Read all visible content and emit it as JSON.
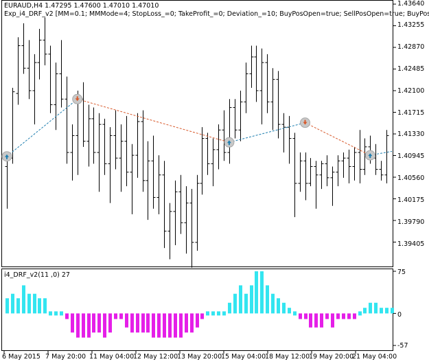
{
  "header": {
    "symbol_line": "EURAUD,H4  1.47295 1.47600 1.47010 1.47010",
    "ea_line": "Exp_i4_DRF_v2 [MM=0.1; MMMode=4; StopLoss_=0; TakeProfit_=0; Deviation_=10; BuyPosOpen=true; SellPosOpen=true; BuyPosC"
  },
  "indicator": {
    "title": "i4_DRF_v2(11 ,0) 27",
    "levels": [
      "75",
      "0",
      "-57"
    ]
  },
  "price_axis": [
    "1.43640",
    "1.43255",
    "1.42870",
    "1.42485",
    "1.42100",
    "1.41715",
    "1.41330",
    "1.40945",
    "1.40560",
    "1.40175",
    "1.39790",
    "1.39405"
  ],
  "date_axis": [
    "6 May 2015",
    "7 May 20:00",
    "11 May 04:00",
    "12 May 12:00",
    "13 May 20:00",
    "15 May 04:00",
    "18 May 12:00",
    "19 May 20:00",
    "21 May 04:00"
  ],
  "colors": {
    "positive_bar": "#33e5f0",
    "negative_bar": "#e51fe8",
    "buy_line": "#1f7fb0",
    "sell_line": "#d8592b",
    "candle": "#000000"
  },
  "chart_data": {
    "type": "candlestick",
    "price_ylim": [
      1.3902,
      1.4364
    ],
    "indicator_ylim": [
      -57,
      75
    ],
    "candles": [
      {
        "o": 1.4075,
        "h": 1.4095,
        "l": 1.4,
        "c": 1.4088
      },
      {
        "o": 1.409,
        "h": 1.4215,
        "l": 1.408,
        "c": 1.4208
      },
      {
        "o": 1.4205,
        "h": 1.4305,
        "l": 1.4185,
        "c": 1.429
      },
      {
        "o": 1.429,
        "h": 1.433,
        "l": 1.424,
        "c": 1.425
      },
      {
        "o": 1.425,
        "h": 1.43,
        "l": 1.4195,
        "c": 1.421
      },
      {
        "o": 1.421,
        "h": 1.4275,
        "l": 1.415,
        "c": 1.426
      },
      {
        "o": 1.426,
        "h": 1.432,
        "l": 1.423,
        "c": 1.43
      },
      {
        "o": 1.43,
        "h": 1.434,
        "l": 1.4255,
        "c": 1.4275
      },
      {
        "o": 1.4275,
        "h": 1.429,
        "l": 1.417,
        "c": 1.4185
      },
      {
        "o": 1.4185,
        "h": 1.426,
        "l": 1.414,
        "c": 1.424
      },
      {
        "o": 1.424,
        "h": 1.43,
        "l": 1.418,
        "c": 1.4195
      },
      {
        "o": 1.4195,
        "h": 1.4235,
        "l": 1.408,
        "c": 1.41
      },
      {
        "o": 1.41,
        "h": 1.415,
        "l": 1.405,
        "c": 1.413
      },
      {
        "o": 1.413,
        "h": 1.421,
        "l": 1.406,
        "c": 1.4195
      },
      {
        "o": 1.4195,
        "h": 1.4225,
        "l": 1.411,
        "c": 1.412
      },
      {
        "o": 1.412,
        "h": 1.4185,
        "l": 1.4075,
        "c": 1.416
      },
      {
        "o": 1.416,
        "h": 1.418,
        "l": 1.408,
        "c": 1.41
      },
      {
        "o": 1.41,
        "h": 1.417,
        "l": 1.403,
        "c": 1.415
      },
      {
        "o": 1.415,
        "h": 1.416,
        "l": 1.406,
        "c": 1.408
      },
      {
        "o": 1.408,
        "h": 1.4145,
        "l": 1.401,
        "c": 1.413
      },
      {
        "o": 1.413,
        "h": 1.4175,
        "l": 1.407,
        "c": 1.409
      },
      {
        "o": 1.409,
        "h": 1.415,
        "l": 1.403,
        "c": 1.412
      },
      {
        "o": 1.412,
        "h": 1.4165,
        "l": 1.404,
        "c": 1.4065
      },
      {
        "o": 1.4065,
        "h": 1.4115,
        "l": 1.399,
        "c": 1.4095
      },
      {
        "o": 1.4095,
        "h": 1.417,
        "l": 1.4055,
        "c": 1.4155
      },
      {
        "o": 1.4155,
        "h": 1.4175,
        "l": 1.403,
        "c": 1.405
      },
      {
        "o": 1.405,
        "h": 1.412,
        "l": 1.398,
        "c": 1.4085
      },
      {
        "o": 1.4085,
        "h": 1.413,
        "l": 1.4,
        "c": 1.402
      },
      {
        "o": 1.402,
        "h": 1.4095,
        "l": 1.399,
        "c": 1.406
      },
      {
        "o": 1.406,
        "h": 1.4085,
        "l": 1.393,
        "c": 1.396
      },
      {
        "o": 1.396,
        "h": 1.401,
        "l": 1.391,
        "c": 1.3995
      },
      {
        "o": 1.3995,
        "h": 1.405,
        "l": 1.3935,
        "c": 1.403
      },
      {
        "o": 1.403,
        "h": 1.406,
        "l": 1.3955,
        "c": 1.3975
      },
      {
        "o": 1.3975,
        "h": 1.404,
        "l": 1.392,
        "c": 1.401
      },
      {
        "o": 1.401,
        "h": 1.4035,
        "l": 1.3895,
        "c": 1.394
      },
      {
        "o": 1.394,
        "h": 1.406,
        "l": 1.3925,
        "c": 1.4045
      },
      {
        "o": 1.4045,
        "h": 1.4145,
        "l": 1.4025,
        "c": 1.4125
      },
      {
        "o": 1.4125,
        "h": 1.4135,
        "l": 1.406,
        "c": 1.408
      },
      {
        "o": 1.408,
        "h": 1.4125,
        "l": 1.404,
        "c": 1.4105
      },
      {
        "o": 1.4105,
        "h": 1.415,
        "l": 1.407,
        "c": 1.414
      },
      {
        "o": 1.414,
        "h": 1.4175,
        "l": 1.4085,
        "c": 1.41
      },
      {
        "o": 1.41,
        "h": 1.4195,
        "l": 1.408,
        "c": 1.418
      },
      {
        "o": 1.418,
        "h": 1.4195,
        "l": 1.4125,
        "c": 1.414
      },
      {
        "o": 1.414,
        "h": 1.421,
        "l": 1.412,
        "c": 1.419
      },
      {
        "o": 1.419,
        "h": 1.426,
        "l": 1.417,
        "c": 1.424
      },
      {
        "o": 1.424,
        "h": 1.429,
        "l": 1.4215,
        "c": 1.427
      },
      {
        "o": 1.427,
        "h": 1.429,
        "l": 1.419,
        "c": 1.421
      },
      {
        "o": 1.421,
        "h": 1.4285,
        "l": 1.415,
        "c": 1.426
      },
      {
        "o": 1.426,
        "h": 1.4275,
        "l": 1.417,
        "c": 1.419
      },
      {
        "o": 1.419,
        "h": 1.425,
        "l": 1.414,
        "c": 1.423
      },
      {
        "o": 1.423,
        "h": 1.4245,
        "l": 1.4125,
        "c": 1.415
      },
      {
        "o": 1.415,
        "h": 1.417,
        "l": 1.41,
        "c": 1.4145
      },
      {
        "o": 1.4145,
        "h": 1.4165,
        "l": 1.408,
        "c": 1.4125
      },
      {
        "o": 1.4125,
        "h": 1.4135,
        "l": 1.3985,
        "c": 1.4045
      },
      {
        "o": 1.4045,
        "h": 1.41,
        "l": 1.403,
        "c": 1.4085
      },
      {
        "o": 1.4085,
        "h": 1.41,
        "l": 1.4015,
        "c": 1.4045
      },
      {
        "o": 1.4045,
        "h": 1.409,
        "l": 1.404,
        "c": 1.4075
      },
      {
        "o": 1.4075,
        "h": 1.4085,
        "l": 1.4,
        "c": 1.406
      },
      {
        "o": 1.406,
        "h": 1.4085,
        "l": 1.4035,
        "c": 1.408
      },
      {
        "o": 1.408,
        "h": 1.4095,
        "l": 1.404,
        "c": 1.4055
      },
      {
        "o": 1.4055,
        "h": 1.4075,
        "l": 1.4005,
        "c": 1.4065
      },
      {
        "o": 1.4065,
        "h": 1.4095,
        "l": 1.404,
        "c": 1.4085
      },
      {
        "o": 1.4085,
        "h": 1.41,
        "l": 1.4055,
        "c": 1.409
      },
      {
        "o": 1.409,
        "h": 1.4105,
        "l": 1.4045,
        "c": 1.4075
      },
      {
        "o": 1.4075,
        "h": 1.411,
        "l": 1.405,
        "c": 1.41
      },
      {
        "o": 1.41,
        "h": 1.414,
        "l": 1.4045,
        "c": 1.407
      },
      {
        "o": 1.407,
        "h": 1.4125,
        "l": 1.406,
        "c": 1.411
      },
      {
        "o": 1.411,
        "h": 1.413,
        "l": 1.408,
        "c": 1.409
      },
      {
        "o": 1.409,
        "h": 1.4115,
        "l": 1.406,
        "c": 1.407
      },
      {
        "o": 1.407,
        "h": 1.4085,
        "l": 1.405,
        "c": 1.406
      },
      {
        "o": 1.406,
        "h": 1.414,
        "l": 1.4045,
        "c": 1.413
      }
    ],
    "histogram": [
      27,
      35,
      27,
      50,
      35,
      35,
      27,
      27,
      0,
      0,
      0,
      -10,
      -34,
      -43,
      -43,
      -43,
      -34,
      -34,
      -43,
      -34,
      -10,
      -10,
      -25,
      -34,
      -34,
      -34,
      -34,
      -43,
      -43,
      -43,
      -43,
      -43,
      -43,
      -34,
      -34,
      -25,
      -10,
      0,
      0,
      0,
      0,
      19,
      35,
      50,
      35,
      50,
      75,
      75,
      50,
      35,
      27,
      19,
      10,
      0,
      -10,
      -10,
      -25,
      -25,
      -25,
      -10,
      -25,
      -10,
      -10,
      -10,
      -10,
      0,
      10,
      19,
      19,
      10,
      10,
      10
    ],
    "trades": [
      {
        "bar": 0,
        "price": 1.4093,
        "kind": "buy"
      },
      {
        "bar": 13,
        "price": 1.4195,
        "kind": "sell"
      },
      {
        "bar": 41,
        "price": 1.4118,
        "kind": "buy"
      },
      {
        "bar": 55,
        "price": 1.4153,
        "kind": "sell"
      },
      {
        "bar": 67,
        "price": 1.4095,
        "kind": "buy"
      }
    ],
    "end_price": 1.4102
  }
}
